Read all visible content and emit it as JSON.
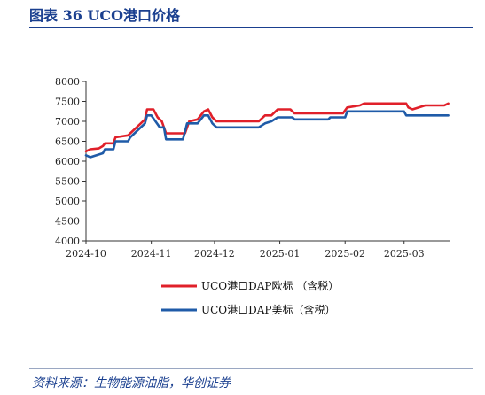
{
  "header": {
    "title": "图表 36    UCO港口价格"
  },
  "footer": {
    "source": "资料来源：生物能源油脂，华创证券"
  },
  "chart_data": {
    "type": "line",
    "title": "",
    "xlabel": "",
    "ylabel": "",
    "ylim": [
      4000,
      8000
    ],
    "yticks": [
      4000,
      4500,
      5000,
      5500,
      6000,
      6500,
      7000,
      7500,
      8000
    ],
    "xlim": [
      "2024-10-01",
      "2025-03-23"
    ],
    "xticks": [
      {
        "label": "2024-10",
        "date": "2024-10-01"
      },
      {
        "label": "2024-11",
        "date": "2024-11-01"
      },
      {
        "label": "2024-12",
        "date": "2024-12-01"
      },
      {
        "label": "2025-01",
        "date": "2025-01-01"
      },
      {
        "label": "2025-02",
        "date": "2025-02-01"
      },
      {
        "label": "2025-03",
        "date": "2025-03-01"
      }
    ],
    "grid": false,
    "legend_position": "bottom",
    "series": [
      {
        "name": "UCO港口DAP欧标 （含税）",
        "color": "#e0202a",
        "points": [
          [
            "2024-10-01",
            6250
          ],
          [
            "2024-10-03",
            6300
          ],
          [
            "2024-10-07",
            6320
          ],
          [
            "2024-10-09",
            6380
          ],
          [
            "2024-10-10",
            6450
          ],
          [
            "2024-10-14",
            6450
          ],
          [
            "2024-10-15",
            6600
          ],
          [
            "2024-10-21",
            6650
          ],
          [
            "2024-10-22",
            6700
          ],
          [
            "2024-10-25",
            6850
          ],
          [
            "2024-10-27",
            6950
          ],
          [
            "2024-10-29",
            7050
          ],
          [
            "2024-10-30",
            7300
          ],
          [
            "2024-11-02",
            7300
          ],
          [
            "2024-11-04",
            7100
          ],
          [
            "2024-11-06",
            7000
          ],
          [
            "2024-11-08",
            6700
          ],
          [
            "2024-11-17",
            6700
          ],
          [
            "2024-11-18",
            6850
          ],
          [
            "2024-11-19",
            7000
          ],
          [
            "2024-11-23",
            7050
          ],
          [
            "2024-11-26",
            7250
          ],
          [
            "2024-11-28",
            7300
          ],
          [
            "2024-11-30",
            7100
          ],
          [
            "2024-12-02",
            7000
          ],
          [
            "2024-12-22",
            7000
          ],
          [
            "2024-12-25",
            7150
          ],
          [
            "2024-12-28",
            7150
          ],
          [
            "2024-12-31",
            7300
          ],
          [
            "2025-01-06",
            7300
          ],
          [
            "2025-01-08",
            7200
          ],
          [
            "2025-01-31",
            7200
          ],
          [
            "2025-02-02",
            7350
          ],
          [
            "2025-02-08",
            7400
          ],
          [
            "2025-02-10",
            7450
          ],
          [
            "2025-03-02",
            7450
          ],
          [
            "2025-03-03",
            7350
          ],
          [
            "2025-03-05",
            7300
          ],
          [
            "2025-03-08",
            7350
          ],
          [
            "2025-03-11",
            7400
          ],
          [
            "2025-03-20",
            7400
          ],
          [
            "2025-03-22",
            7450
          ]
        ]
      },
      {
        "name": "UCO港口DAP美标（含税）",
        "color": "#1f5ba8",
        "points": [
          [
            "2024-10-01",
            6150
          ],
          [
            "2024-10-03",
            6100
          ],
          [
            "2024-10-06",
            6150
          ],
          [
            "2024-10-09",
            6200
          ],
          [
            "2024-10-10",
            6300
          ],
          [
            "2024-10-14",
            6300
          ],
          [
            "2024-10-15",
            6500
          ],
          [
            "2024-10-21",
            6500
          ],
          [
            "2024-10-22",
            6600
          ],
          [
            "2024-10-26",
            6800
          ],
          [
            "2024-10-29",
            6950
          ],
          [
            "2024-10-30",
            7150
          ],
          [
            "2024-11-01",
            7150
          ],
          [
            "2024-11-03",
            7000
          ],
          [
            "2024-11-05",
            6850
          ],
          [
            "2024-11-07",
            6850
          ],
          [
            "2024-11-08",
            6550
          ],
          [
            "2024-11-16",
            6550
          ],
          [
            "2024-11-17",
            6750
          ],
          [
            "2024-11-18",
            6950
          ],
          [
            "2024-11-23",
            6950
          ],
          [
            "2024-11-26",
            7150
          ],
          [
            "2024-11-28",
            7150
          ],
          [
            "2024-11-30",
            6950
          ],
          [
            "2024-12-02",
            6850
          ],
          [
            "2024-12-22",
            6850
          ],
          [
            "2024-12-25",
            6950
          ],
          [
            "2024-12-28",
            7000
          ],
          [
            "2024-12-31",
            7100
          ],
          [
            "2025-01-07",
            7100
          ],
          [
            "2025-01-08",
            7050
          ],
          [
            "2025-01-24",
            7050
          ],
          [
            "2025-01-25",
            7100
          ],
          [
            "2025-02-01",
            7100
          ],
          [
            "2025-02-02",
            7250
          ],
          [
            "2025-03-01",
            7250
          ],
          [
            "2025-03-02",
            7150
          ],
          [
            "2025-03-22",
            7150
          ]
        ]
      }
    ]
  }
}
